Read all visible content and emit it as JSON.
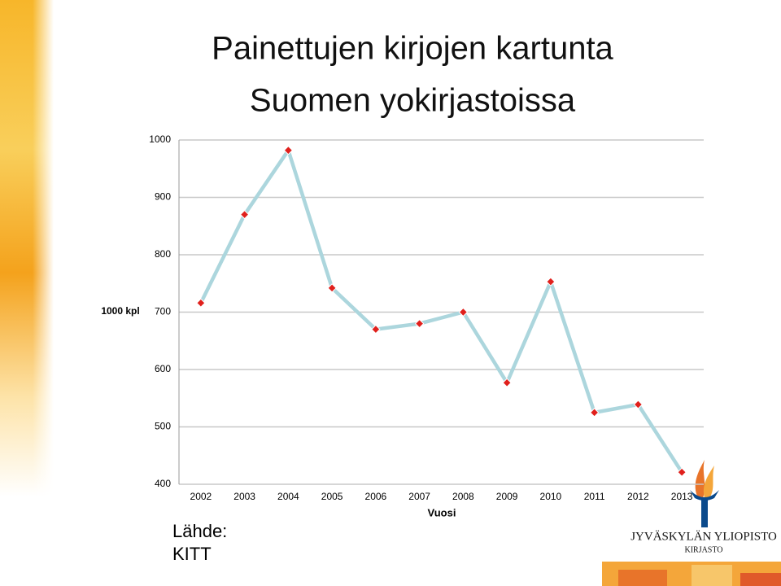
{
  "chart_data": {
    "type": "line",
    "title_lines": [
      "Painettujen kirjojen kartunta",
      "Suomen yokirjastoissa"
    ],
    "y_label": "1000 kpl",
    "x_label": "Vuosi",
    "categories": [
      "2002",
      "2003",
      "2004",
      "2005",
      "2006",
      "2007",
      "2008",
      "2009",
      "2010",
      "2011",
      "2012",
      "2013"
    ],
    "series": [
      {
        "name": "kartunta",
        "color": "#acd6dd",
        "marker_color": "#e0201c",
        "values": [
          716,
          870,
          982,
          742,
          670,
          680,
          700,
          577,
          753,
          525,
          539,
          421
        ]
      }
    ],
    "ylim": [
      400,
      1000
    ],
    "yticks": [
      400,
      500,
      600,
      700,
      800,
      900,
      1000
    ],
    "grid": true,
    "source_lines": [
      "Lähde:",
      "KITT"
    ],
    "logo_text": "JYVÄSKYLÄN YLIOPISTO",
    "logo_subtext": "KIRJASTO"
  }
}
